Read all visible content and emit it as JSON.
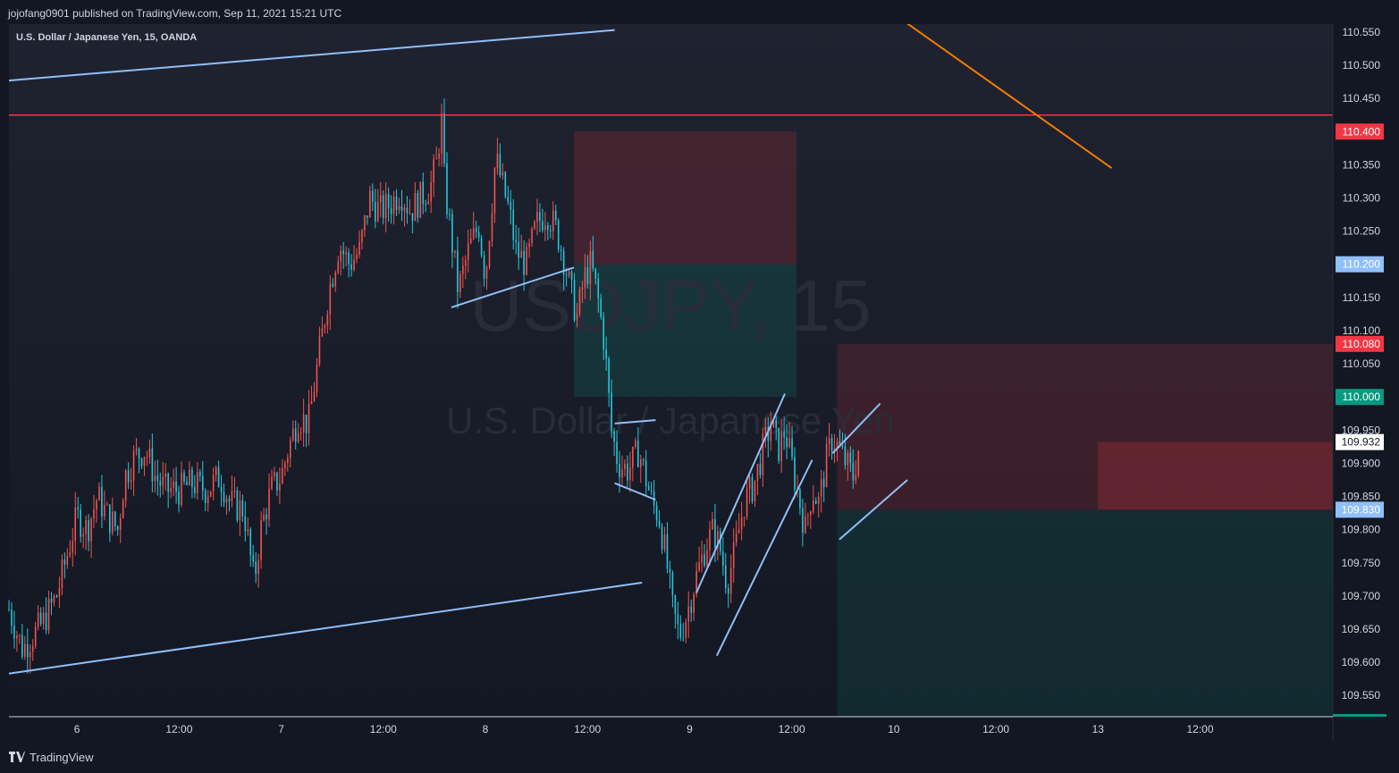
{
  "header": {
    "publisher_line": "jojofang0901 published on TradingView.com, Sep 11, 2021 15:21 UTC"
  },
  "footer": {
    "brand": "TradingView"
  },
  "chart_data": {
    "type": "candlestick",
    "symbol_line": "U.S. Dollar / Japanese Yen, 15, OANDA",
    "watermark_symbol": "USDJPY, 15",
    "watermark_name": "U.S. Dollar / Japanese Yen",
    "ylim": [
      109.518,
      110.562
    ],
    "y_ticks": [
      "110.550",
      "110.500",
      "110.450",
      "110.400",
      "110.350",
      "110.300",
      "110.250",
      "110.200",
      "110.150",
      "110.100",
      "110.050",
      "110.000",
      "109.950",
      "109.900",
      "109.850",
      "109.800",
      "109.750",
      "109.700",
      "109.650",
      "109.600",
      "109.550"
    ],
    "x_ticks": [
      {
        "label": "6",
        "t": 0.1
      },
      {
        "label": "12:00",
        "t": 0.25
      },
      {
        "label": "7",
        "t": 0.4
      },
      {
        "label": "12:00",
        "t": 0.55
      },
      {
        "label": "8",
        "t": 0.7
      },
      {
        "label": "12:00",
        "t": 0.85
      },
      {
        "label": "9",
        "t": 1.0
      },
      {
        "label": "12:00",
        "t": 1.15
      },
      {
        "label": "10",
        "t": 1.3
      },
      {
        "label": "12:00",
        "t": 1.45
      },
      {
        "label": "13",
        "t": 1.6
      },
      {
        "label": "12:00",
        "t": 1.75
      }
    ],
    "x_range": [
      0.0,
      1.945
    ],
    "price_badges": [
      {
        "label": "110.400",
        "value": 110.4,
        "color": "#f23645"
      },
      {
        "label": "110.200",
        "value": 110.2,
        "color": "#90bff9"
      },
      {
        "label": "110.080",
        "value": 110.08,
        "color": "#f23645"
      },
      {
        "label": "110.000",
        "value": 110.0,
        "color": "#089981"
      },
      {
        "label": "109.932",
        "value": 109.932,
        "color": "#ffffff"
      },
      {
        "label": "109.830",
        "value": 109.83,
        "color": "#90bff9"
      }
    ],
    "price_path": [
      [
        0.0,
        109.68
      ],
      [
        0.02,
        109.62
      ],
      [
        0.05,
        109.66
      ],
      [
        0.07,
        109.7
      ],
      [
        0.085,
        109.76
      ],
      [
        0.1,
        109.82
      ],
      [
        0.115,
        109.8
      ],
      [
        0.13,
        109.85
      ],
      [
        0.145,
        109.82
      ],
      [
        0.16,
        109.8
      ],
      [
        0.17,
        109.88
      ],
      [
        0.185,
        109.91
      ],
      [
        0.2,
        109.92
      ],
      [
        0.215,
        109.88
      ],
      [
        0.23,
        109.86
      ],
      [
        0.25,
        109.86
      ],
      [
        0.27,
        109.87
      ],
      [
        0.29,
        109.86
      ],
      [
        0.31,
        109.88
      ],
      [
        0.325,
        109.84
      ],
      [
        0.345,
        109.83
      ],
      [
        0.36,
        109.72
      ],
      [
        0.37,
        109.8
      ],
      [
        0.385,
        109.86
      ],
      [
        0.4,
        109.88
      ],
      [
        0.41,
        109.92
      ],
      [
        0.425,
        109.97
      ],
      [
        0.44,
        109.96
      ],
      [
        0.455,
        110.06
      ],
      [
        0.47,
        110.16
      ],
      [
        0.485,
        110.23
      ],
      [
        0.5,
        110.2
      ],
      [
        0.515,
        110.22
      ],
      [
        0.53,
        110.3
      ],
      [
        0.545,
        110.28
      ],
      [
        0.56,
        110.29
      ],
      [
        0.575,
        110.31
      ],
      [
        0.59,
        110.28
      ],
      [
        0.605,
        110.3
      ],
      [
        0.62,
        110.32
      ],
      [
        0.63,
        110.36
      ],
      [
        0.635,
        110.43
      ],
      [
        0.64,
        110.32
      ],
      [
        0.65,
        110.24
      ],
      [
        0.66,
        110.16
      ],
      [
        0.675,
        110.22
      ],
      [
        0.69,
        110.26
      ],
      [
        0.7,
        110.18
      ],
      [
        0.715,
        110.36
      ],
      [
        0.725,
        110.32
      ],
      [
        0.735,
        110.28
      ],
      [
        0.745,
        110.22
      ],
      [
        0.76,
        110.2
      ],
      [
        0.775,
        110.26
      ],
      [
        0.79,
        110.28
      ],
      [
        0.805,
        110.25
      ],
      [
        0.815,
        110.21
      ],
      [
        0.825,
        110.16
      ],
      [
        0.835,
        110.12
      ],
      [
        0.845,
        110.18
      ],
      [
        0.855,
        110.2
      ],
      [
        0.865,
        110.15
      ],
      [
        0.875,
        110.08
      ],
      [
        0.885,
        109.95
      ],
      [
        0.895,
        109.9
      ],
      [
        0.91,
        109.89
      ],
      [
        0.925,
        109.92
      ],
      [
        0.935,
        109.88
      ],
      [
        0.945,
        109.84
      ],
      [
        0.955,
        109.82
      ],
      [
        0.965,
        109.76
      ],
      [
        0.975,
        109.68
      ],
      [
        0.985,
        109.64
      ],
      [
        0.995,
        109.67
      ],
      [
        1.01,
        109.73
      ],
      [
        1.025,
        109.78
      ],
      [
        1.035,
        109.8
      ],
      [
        1.045,
        109.77
      ],
      [
        1.055,
        109.72
      ],
      [
        1.065,
        109.76
      ],
      [
        1.08,
        109.84
      ],
      [
        1.095,
        109.87
      ],
      [
        1.11,
        109.93
      ],
      [
        1.12,
        109.96
      ],
      [
        1.13,
        109.92
      ],
      [
        1.14,
        109.95
      ],
      [
        1.15,
        109.9
      ],
      [
        1.16,
        109.85
      ],
      [
        1.17,
        109.8
      ],
      [
        1.18,
        109.86
      ],
      [
        1.19,
        109.84
      ],
      [
        1.2,
        109.9
      ],
      [
        1.21,
        109.94
      ],
      [
        1.22,
        109.92
      ],
      [
        1.23,
        109.9
      ],
      [
        1.24,
        109.88
      ],
      [
        1.25,
        109.93
      ]
    ],
    "drawings": {
      "horizontal_line_level": 110.425,
      "upper_channel_line": [
        [
          0.0,
          110.477
        ],
        [
          0.89,
          110.553
        ]
      ],
      "lower_channel_line": [
        [
          0.0,
          109.583
        ],
        [
          0.93,
          109.72
        ]
      ],
      "orange_trend_line": [
        [
          1.31,
          110.57
        ],
        [
          1.62,
          110.345
        ]
      ],
      "rising_support_1": [
        [
          0.65,
          110.135
        ],
        [
          0.83,
          110.195
        ]
      ],
      "wedge_upper": [
        [
          0.89,
          109.96
        ],
        [
          0.95,
          109.965
        ]
      ],
      "wedge_lower": [
        [
          0.89,
          109.87
        ],
        [
          0.95,
          109.845
        ]
      ],
      "rising_channel_upper": [
        [
          1.01,
          109.705
        ],
        [
          1.14,
          110.005
        ]
      ],
      "rising_channel_lower": [
        [
          1.04,
          109.61
        ],
        [
          1.18,
          109.905
        ]
      ],
      "flag_upper": [
        [
          1.21,
          109.915
        ],
        [
          1.28,
          109.99
        ]
      ],
      "flag_lower": [
        [
          1.22,
          109.785
        ],
        [
          1.32,
          109.875
        ]
      ]
    },
    "positions": [
      {
        "side": "short",
        "start": 0.83,
        "end": 1.157,
        "stop": 110.4,
        "entry": 110.2,
        "target": 110.0
      },
      {
        "side": "short",
        "start": 1.217,
        "end": 1.945,
        "entry_top": 110.08,
        "entry": 109.932,
        "stop_zone": 109.83,
        "target": 109.518
      }
    ]
  }
}
